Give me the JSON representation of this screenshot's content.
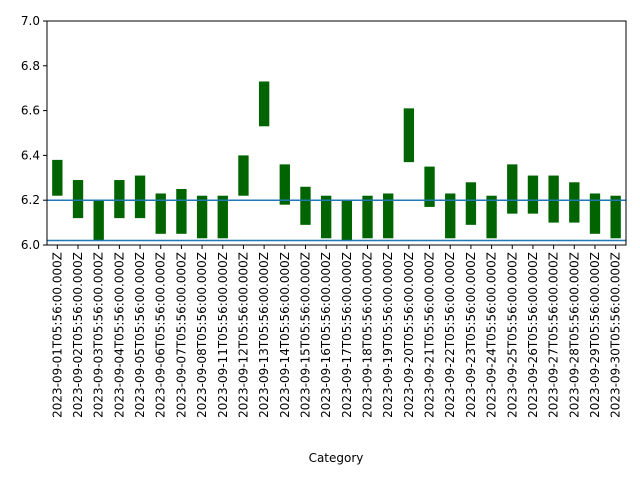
{
  "chart_data": {
    "type": "bar",
    "xlabel": "Category",
    "ylim": [
      6.0,
      7.0
    ],
    "yticks": [
      "6.0",
      "6.2",
      "6.4",
      "6.6",
      "6.8",
      "7.0"
    ],
    "categories": [
      "2023-09-01T05:56:00.000Z",
      "2023-09-02T05:56:00.000Z",
      "2023-09-03T05:56:00.000Z",
      "2023-09-04T05:56:00.000Z",
      "2023-09-05T05:56:00.000Z",
      "2023-09-06T05:56:00.000Z",
      "2023-09-07T05:56:00.000Z",
      "2023-09-08T05:56:00.000Z",
      "2023-09-11T05:56:00.000Z",
      "2023-09-12T05:56:00.000Z",
      "2023-09-13T05:56:00.000Z",
      "2023-09-14T05:56:00.000Z",
      "2023-09-15T05:56:00.000Z",
      "2023-09-16T05:56:00.000Z",
      "2023-09-17T05:56:00.000Z",
      "2023-09-18T05:56:00.000Z",
      "2023-09-19T05:56:00.000Z",
      "2023-09-20T05:56:00.000Z",
      "2023-09-21T05:56:00.000Z",
      "2023-09-22T05:56:00.000Z",
      "2023-09-23T05:56:00.000Z",
      "2023-09-24T05:56:00.000Z",
      "2023-09-25T05:56:00.000Z",
      "2023-09-26T05:56:00.000Z",
      "2023-09-27T05:56:00.000Z",
      "2023-09-28T05:56:00.000Z",
      "2023-09-29T05:56:00.000Z",
      "2023-09-30T05:56:00.000Z"
    ],
    "ranges": [
      [
        6.22,
        6.38
      ],
      [
        6.12,
        6.29
      ],
      [
        6.02,
        6.2
      ],
      [
        6.12,
        6.29
      ],
      [
        6.12,
        6.31
      ],
      [
        6.05,
        6.23
      ],
      [
        6.05,
        6.25
      ],
      [
        6.03,
        6.22
      ],
      [
        6.03,
        6.22
      ],
      [
        6.22,
        6.4
      ],
      [
        6.53,
        6.73
      ],
      [
        6.18,
        6.36
      ],
      [
        6.09,
        6.26
      ],
      [
        6.03,
        6.22
      ],
      [
        6.02,
        6.2
      ],
      [
        6.03,
        6.22
      ],
      [
        6.03,
        6.23
      ],
      [
        6.37,
        6.61
      ],
      [
        6.17,
        6.35
      ],
      [
        6.03,
        6.23
      ],
      [
        6.09,
        6.28
      ],
      [
        6.03,
        6.22
      ],
      [
        6.14,
        6.36
      ],
      [
        6.14,
        6.31
      ],
      [
        6.1,
        6.31
      ],
      [
        6.1,
        6.28
      ],
      [
        6.05,
        6.23
      ],
      [
        6.03,
        6.22
      ]
    ],
    "bar_color": "#006400",
    "hlines": [
      6.2,
      6.02
    ],
    "hline_color": "#1f77b4",
    "grid": false
  }
}
